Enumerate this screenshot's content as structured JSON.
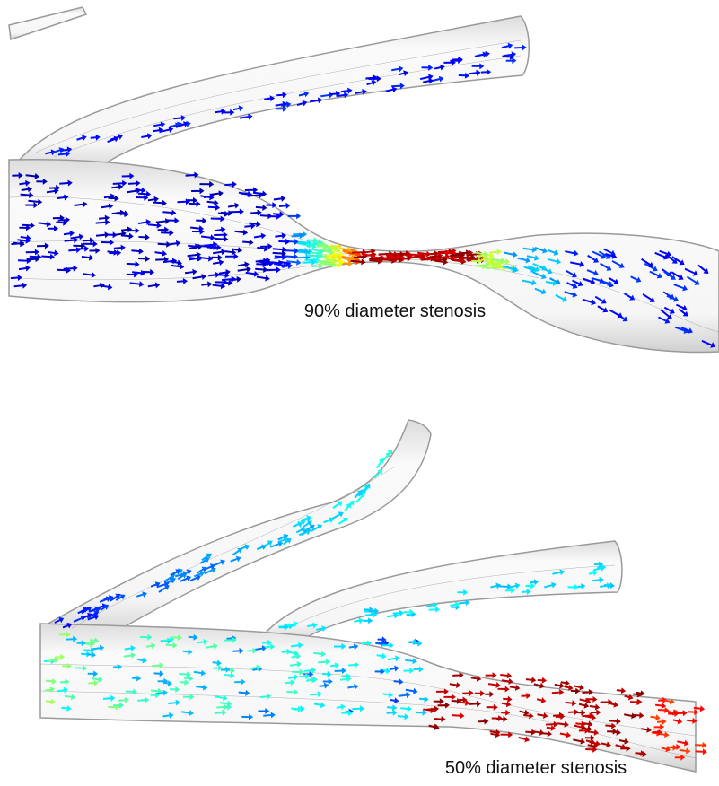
{
  "panels": [
    {
      "caption": "90% diameter stenosis"
    },
    {
      "caption": "50% diameter stenosis"
    }
  ]
}
